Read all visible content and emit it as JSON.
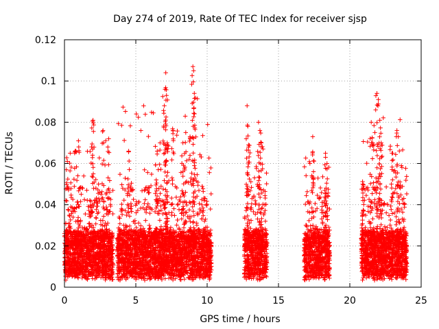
{
  "chart_data": {
    "type": "scatter",
    "title": "Day 274 of 2019, Rate Of TEC Index for receiver sjsp",
    "xlabel": "GPS time / hours",
    "ylabel": "ROTI / TECUs",
    "xlim": [
      0,
      25
    ],
    "ylim": [
      0,
      0.12
    ],
    "xticks": [
      0,
      5,
      10,
      15,
      20,
      25
    ],
    "yticks": [
      0,
      0.02,
      0.04,
      0.06,
      0.08,
      0.1,
      0.12
    ],
    "xtick_labels": [
      "0",
      "5",
      "10",
      "15",
      "20",
      "25"
    ],
    "ytick_labels": [
      "0",
      "0.02",
      "0.04",
      "0.06",
      "0.08",
      "0.1",
      "0.12"
    ],
    "grid": true,
    "marker": "+",
    "color": "#ff0000",
    "segments": [
      {
        "start": 0.0,
        "end": 3.4,
        "base": 0.016,
        "max": 0.081
      },
      {
        "start": 3.7,
        "end": 10.3,
        "base": 0.017,
        "max": 0.107
      },
      {
        "start": 12.6,
        "end": 14.2,
        "base": 0.018,
        "max": 0.088
      },
      {
        "start": 16.8,
        "end": 18.6,
        "base": 0.016,
        "max": 0.073
      },
      {
        "start": 20.8,
        "end": 24.0,
        "base": 0.016,
        "max": 0.094
      }
    ],
    "peaks": [
      {
        "x": 0.2,
        "y": 0.061
      },
      {
        "x": 0.4,
        "y": 0.065
      },
      {
        "x": 0.8,
        "y": 0.066
      },
      {
        "x": 1.0,
        "y": 0.068
      },
      {
        "x": 1.9,
        "y": 0.068
      },
      {
        "x": 2.0,
        "y": 0.081
      },
      {
        "x": 2.7,
        "y": 0.076
      },
      {
        "x": 3.1,
        "y": 0.072
      },
      {
        "x": 4.5,
        "y": 0.066
      },
      {
        "x": 6.5,
        "y": 0.066
      },
      {
        "x": 6.7,
        "y": 0.07
      },
      {
        "x": 7.0,
        "y": 0.088
      },
      {
        "x": 7.05,
        "y": 0.096
      },
      {
        "x": 7.1,
        "y": 0.104
      },
      {
        "x": 7.15,
        "y": 0.093
      },
      {
        "x": 7.2,
        "y": 0.07
      },
      {
        "x": 7.6,
        "y": 0.076
      },
      {
        "x": 8.3,
        "y": 0.07
      },
      {
        "x": 8.5,
        "y": 0.075
      },
      {
        "x": 8.8,
        "y": 0.073
      },
      {
        "x": 9.0,
        "y": 0.107
      },
      {
        "x": 9.05,
        "y": 0.105
      },
      {
        "x": 9.1,
        "y": 0.094
      },
      {
        "x": 12.8,
        "y": 0.088
      },
      {
        "x": 12.85,
        "y": 0.078
      },
      {
        "x": 12.9,
        "y": 0.069
      },
      {
        "x": 13.6,
        "y": 0.08
      },
      {
        "x": 13.7,
        "y": 0.076
      },
      {
        "x": 13.8,
        "y": 0.07
      },
      {
        "x": 17.4,
        "y": 0.073
      },
      {
        "x": 18.3,
        "y": 0.063
      },
      {
        "x": 18.4,
        "y": 0.06
      },
      {
        "x": 20.9,
        "y": 0.05
      },
      {
        "x": 21.5,
        "y": 0.08
      },
      {
        "x": 21.6,
        "y": 0.07
      },
      {
        "x": 21.9,
        "y": 0.094
      },
      {
        "x": 22.0,
        "y": 0.091
      },
      {
        "x": 22.1,
        "y": 0.081
      },
      {
        "x": 22.2,
        "y": 0.07
      },
      {
        "x": 23.0,
        "y": 0.065
      },
      {
        "x": 23.3,
        "y": 0.076
      },
      {
        "x": 23.4,
        "y": 0.073
      }
    ]
  }
}
